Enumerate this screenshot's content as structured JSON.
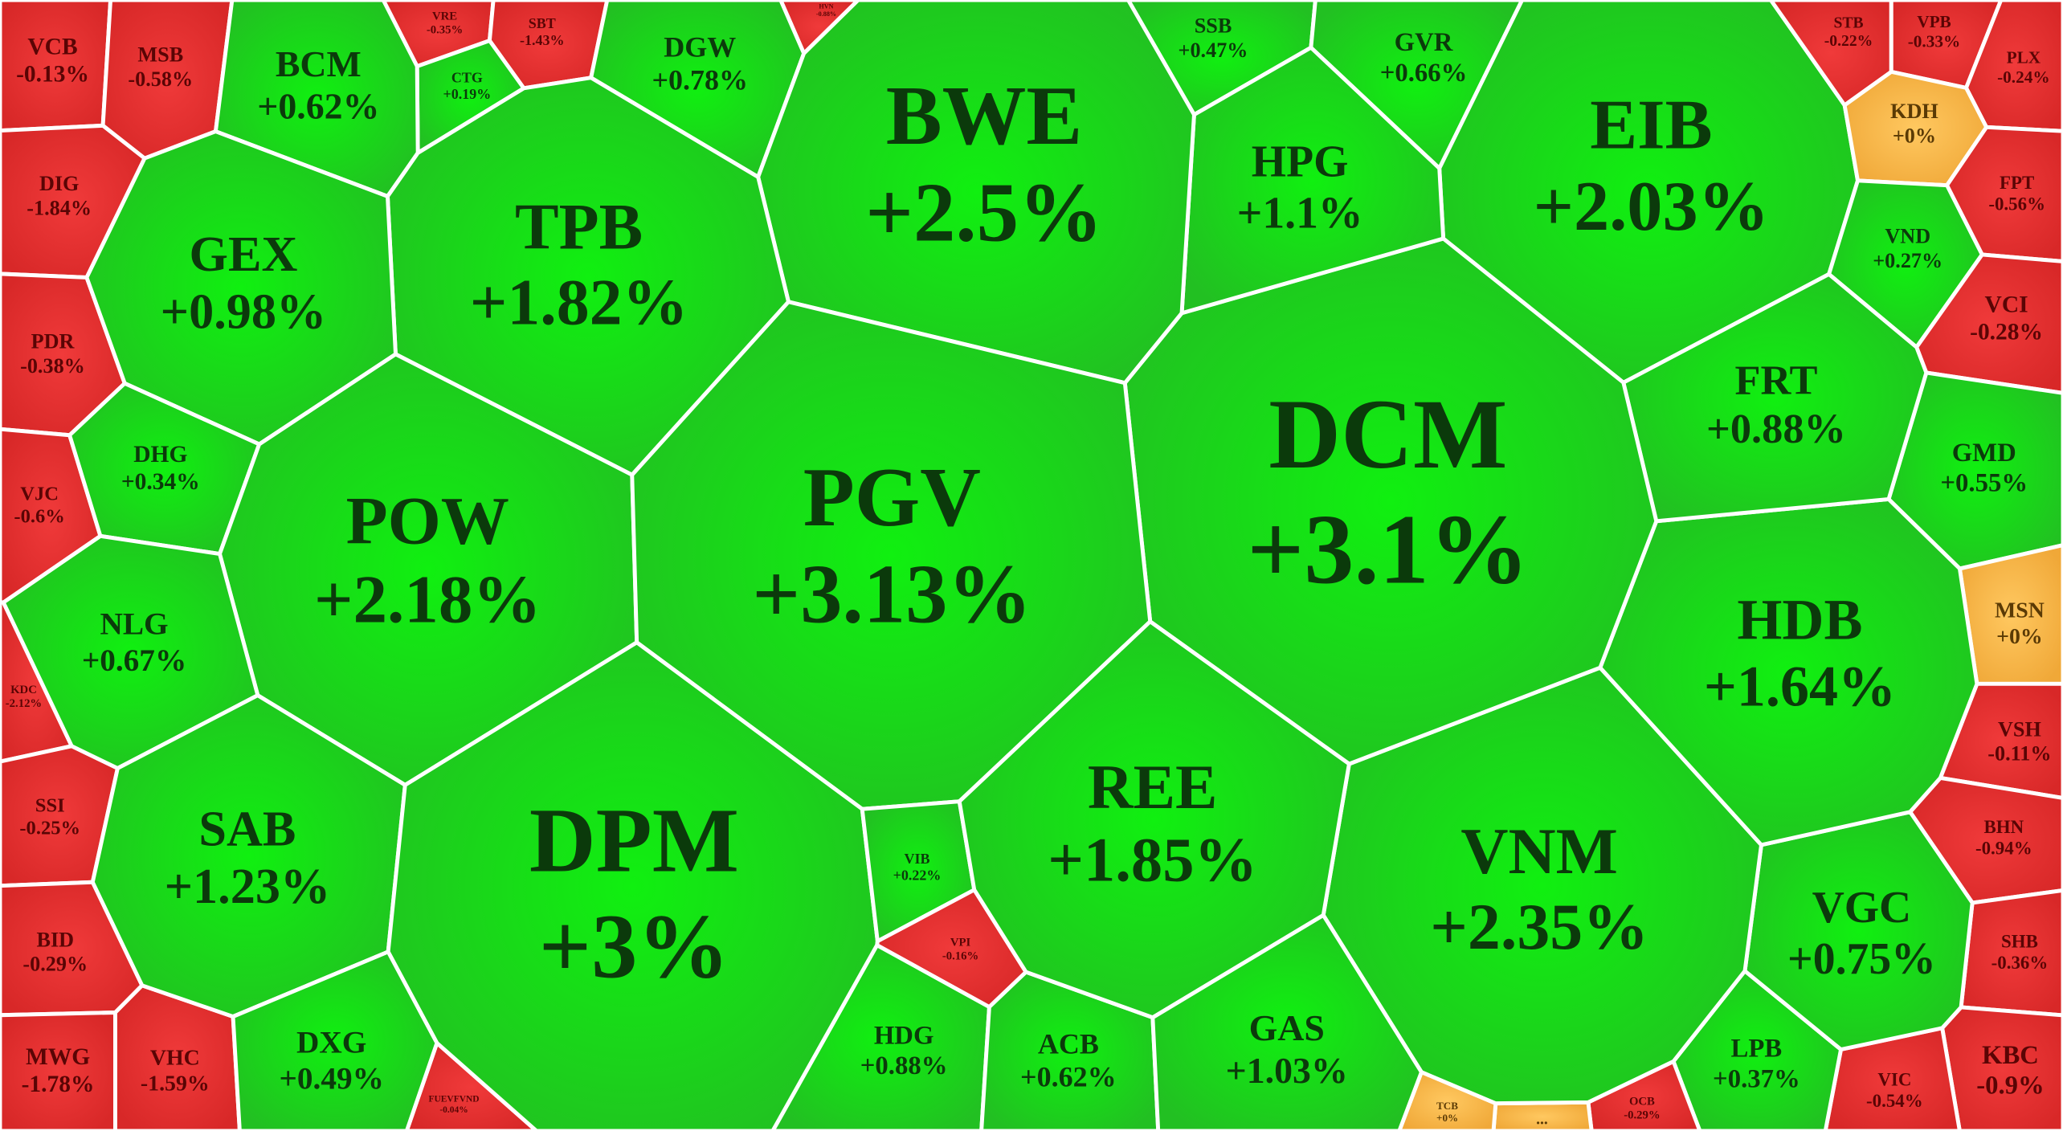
{
  "cells": [
    {
      "ticker": "VCB",
      "change": "-0.13%",
      "color": "red"
    },
    {
      "ticker": "MSB",
      "change": "-0.58%",
      "color": "red"
    },
    {
      "ticker": "DIG",
      "change": "-1.84%",
      "color": "red"
    },
    {
      "ticker": "PDR",
      "change": "-0.38%",
      "color": "red"
    },
    {
      "ticker": "VJC",
      "change": "-0.6%",
      "color": "red"
    },
    {
      "ticker": "KDC",
      "change": "-2.12%",
      "color": "red"
    },
    {
      "ticker": "SSI",
      "change": "-0.25%",
      "color": "red"
    },
    {
      "ticker": "BID",
      "change": "-0.29%",
      "color": "red"
    },
    {
      "ticker": "MWG",
      "change": "-1.78%",
      "color": "red"
    },
    {
      "ticker": "VHC",
      "change": "-1.59%",
      "color": "red"
    },
    {
      "ticker": "FUEVFVND",
      "change": "-0.04%",
      "color": "red"
    },
    {
      "ticker": "VRE",
      "change": "-0.35%",
      "color": "red"
    },
    {
      "ticker": "SBT",
      "change": "-1.43%",
      "color": "red"
    },
    {
      "ticker": "HVN",
      "change": "-0.88%",
      "color": "red"
    },
    {
      "ticker": "CTG",
      "change": "+0.19%",
      "color": "green"
    },
    {
      "ticker": "BCM",
      "change": "+0.62%",
      "color": "green"
    },
    {
      "ticker": "DGW",
      "change": "+0.78%",
      "color": "green"
    },
    {
      "ticker": "SSB",
      "change": "+0.47%",
      "color": "green"
    },
    {
      "ticker": "GVR",
      "change": "+0.66%",
      "color": "green"
    },
    {
      "ticker": "EIB",
      "change": "+2.03%",
      "color": "green"
    },
    {
      "ticker": "STB",
      "change": "-0.22%",
      "color": "red"
    },
    {
      "ticker": "VPB",
      "change": "-0.33%",
      "color": "red"
    },
    {
      "ticker": "PLX",
      "change": "-0.24%",
      "color": "red"
    },
    {
      "ticker": "KDH",
      "change": "+0%",
      "color": "orange"
    },
    {
      "ticker": "FPT",
      "change": "-0.56%",
      "color": "red"
    },
    {
      "ticker": "VND",
      "change": "+0.27%",
      "color": "green"
    },
    {
      "ticker": "VCI",
      "change": "-0.28%",
      "color": "red"
    },
    {
      "ticker": "GMD",
      "change": "+0.55%",
      "color": "green"
    },
    {
      "ticker": "MSN",
      "change": "+0%",
      "color": "orange"
    },
    {
      "ticker": "VSH",
      "change": "-0.11%",
      "color": "red"
    },
    {
      "ticker": "BHN",
      "change": "-0.94%",
      "color": "red"
    },
    {
      "ticker": "SHB",
      "change": "-0.36%",
      "color": "red"
    },
    {
      "ticker": "KBC",
      "change": "-0.9%",
      "color": "red"
    },
    {
      "ticker": "VIC",
      "change": "-0.54%",
      "color": "red"
    },
    {
      "ticker": "LPB",
      "change": "+0.37%",
      "color": "green"
    },
    {
      "ticker": "VGC",
      "change": "+0.75%",
      "color": "green"
    },
    {
      "ticker": "OCB",
      "change": "-0.29%",
      "color": "red"
    },
    {
      "ticker": "...",
      "color": "orange"
    },
    {
      "ticker": "TCB",
      "change": "+0%",
      "color": "orange"
    },
    {
      "ticker": "VNM",
      "change": "+2.35%",
      "color": "green"
    },
    {
      "ticker": "HDB",
      "change": "+1.64%",
      "color": "green"
    },
    {
      "ticker": "FRT",
      "change": "+0.88%",
      "color": "green"
    },
    {
      "ticker": "DCM",
      "change": "+3.1%",
      "color": "green"
    },
    {
      "ticker": "HPG",
      "change": "+1.1%",
      "color": "green"
    },
    {
      "ticker": "BWE",
      "change": "+2.5%",
      "color": "green"
    },
    {
      "ticker": "TPB",
      "change": "+1.82%",
      "color": "green"
    },
    {
      "ticker": "GEX",
      "change": "+0.98%",
      "color": "green"
    },
    {
      "ticker": "DHG",
      "change": "+0.34%",
      "color": "green"
    },
    {
      "ticker": "POW",
      "change": "+2.18%",
      "color": "green"
    },
    {
      "ticker": "PGV",
      "change": "+3.13%",
      "color": "green"
    },
    {
      "ticker": "NLG",
      "change": "+0.67%",
      "color": "green"
    },
    {
      "ticker": "SAB",
      "change": "+1.23%",
      "color": "green"
    },
    {
      "ticker": "DPM",
      "change": "+3%",
      "color": "green"
    },
    {
      "ticker": "DXG",
      "change": "+0.49%",
      "color": "green"
    },
    {
      "ticker": "VIB",
      "change": "+0.22%",
      "color": "green"
    },
    {
      "ticker": "VPI",
      "change": "-0.16%",
      "color": "red"
    },
    {
      "ticker": "HDG",
      "change": "+0.88%",
      "color": "green"
    },
    {
      "ticker": "ACB",
      "change": "+0.62%",
      "color": "green"
    },
    {
      "ticker": "REE",
      "change": "+1.85%",
      "color": "green"
    },
    {
      "ticker": "GAS",
      "change": "+1.03%",
      "color": "green"
    }
  ]
}
